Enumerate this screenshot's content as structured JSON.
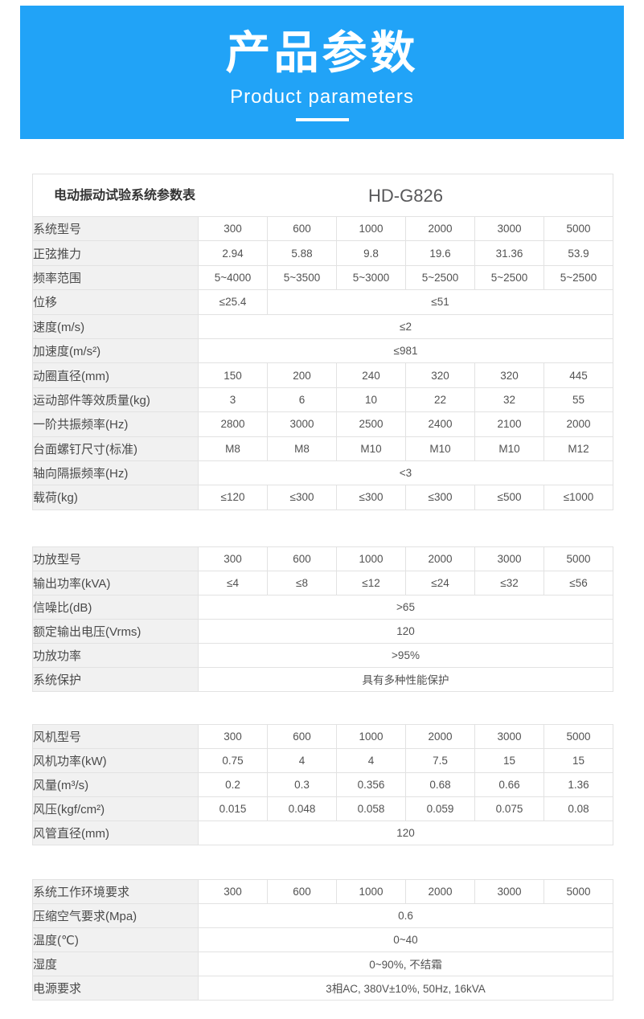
{
  "banner": {
    "title": "产品参数",
    "subtitle": "Product parameters"
  },
  "colors": {
    "banner_blue": "#21a3f7",
    "label_bg": "#f1f1f1",
    "border": "#e2e2e2",
    "title_text": "#333333",
    "model_text": "#58585a"
  },
  "tables": [
    {
      "title": "电动振动试验系统参数表",
      "model": "HD-G826",
      "rows": [
        {
          "label": "系统型号",
          "cells": [
            {
              "text": "300",
              "span": 1
            },
            {
              "text": "600",
              "span": 1
            },
            {
              "text": "1000",
              "span": 1
            },
            {
              "text": "2000",
              "span": 1
            },
            {
              "text": "3000",
              "span": 1
            },
            {
              "text": "5000",
              "span": 1
            }
          ]
        },
        {
          "label": "正弦推力",
          "cells": [
            {
              "text": "2.94",
              "span": 1
            },
            {
              "text": "5.88",
              "span": 1
            },
            {
              "text": "9.8",
              "span": 1
            },
            {
              "text": "19.6",
              "span": 1
            },
            {
              "text": "31.36",
              "span": 1
            },
            {
              "text": "53.9",
              "span": 1
            }
          ]
        },
        {
          "label": "频率范围",
          "cells": [
            {
              "text": "5~4000",
              "span": 1
            },
            {
              "text": "5~3500",
              "span": 1
            },
            {
              "text": "5~3000",
              "span": 1
            },
            {
              "text": "5~2500",
              "span": 1
            },
            {
              "text": "5~2500",
              "span": 1
            },
            {
              "text": "5~2500",
              "span": 1
            }
          ]
        },
        {
          "label": "位移",
          "cells": [
            {
              "text": "≤25.4",
              "span": 1
            },
            {
              "text": "≤51",
              "span": 5
            }
          ]
        },
        {
          "label": "速度(m/s)",
          "cells": [
            {
              "text": "≤2",
              "span": 6
            }
          ]
        },
        {
          "label": "加速度(m/s²)",
          "cells": [
            {
              "text": "≤981",
              "span": 6
            }
          ]
        },
        {
          "label": "动圈直径(mm)",
          "cells": [
            {
              "text": "150",
              "span": 1
            },
            {
              "text": "200",
              "span": 1
            },
            {
              "text": "240",
              "span": 1
            },
            {
              "text": "320",
              "span": 1
            },
            {
              "text": "320",
              "span": 1
            },
            {
              "text": "445",
              "span": 1
            }
          ]
        },
        {
          "label": "运动部件等效质量(kg)",
          "cells": [
            {
              "text": "3",
              "span": 1
            },
            {
              "text": "6",
              "span": 1
            },
            {
              "text": "10",
              "span": 1
            },
            {
              "text": "22",
              "span": 1
            },
            {
              "text": "32",
              "span": 1
            },
            {
              "text": "55",
              "span": 1
            }
          ]
        },
        {
          "label": "一阶共振频率(Hz)",
          "cells": [
            {
              "text": "2800",
              "span": 1
            },
            {
              "text": "3000",
              "span": 1
            },
            {
              "text": "2500",
              "span": 1
            },
            {
              "text": "2400",
              "span": 1
            },
            {
              "text": "2100",
              "span": 1
            },
            {
              "text": "2000",
              "span": 1
            }
          ]
        },
        {
          "label": "台面螺钉尺寸(标准)",
          "cells": [
            {
              "text": "M8",
              "span": 1
            },
            {
              "text": "M8",
              "span": 1
            },
            {
              "text": "M10",
              "span": 1
            },
            {
              "text": "M10",
              "span": 1
            },
            {
              "text": "M10",
              "span": 1
            },
            {
              "text": "M12",
              "span": 1
            }
          ]
        },
        {
          "label": "轴向隔振频率(Hz)",
          "cells": [
            {
              "text": "<3",
              "span": 6
            }
          ]
        },
        {
          "label": "载荷(kg)",
          "cells": [
            {
              "text": "≤120",
              "span": 1
            },
            {
              "text": "≤300",
              "span": 1
            },
            {
              "text": "≤300",
              "span": 1
            },
            {
              "text": "≤300",
              "span": 1
            },
            {
              "text": "≤500",
              "span": 1
            },
            {
              "text": "≤1000",
              "span": 1
            }
          ]
        }
      ]
    },
    {
      "rows": [
        {
          "label": "功放型号",
          "cells": [
            {
              "text": "300",
              "span": 1
            },
            {
              "text": "600",
              "span": 1
            },
            {
              "text": "1000",
              "span": 1
            },
            {
              "text": "2000",
              "span": 1
            },
            {
              "text": "3000",
              "span": 1
            },
            {
              "text": "5000",
              "span": 1
            }
          ]
        },
        {
          "label": "输出功率(kVA)",
          "cells": [
            {
              "text": "≤4",
              "span": 1
            },
            {
              "text": "≤8",
              "span": 1
            },
            {
              "text": "≤12",
              "span": 1
            },
            {
              "text": "≤24",
              "span": 1
            },
            {
              "text": "≤32",
              "span": 1
            },
            {
              "text": "≤56",
              "span": 1
            }
          ]
        },
        {
          "label": "信噪比(dB)",
          "cells": [
            {
              "text": ">65",
              "span": 6
            }
          ]
        },
        {
          "label": "额定输出电压(Vrms)",
          "cells": [
            {
              "text": "120",
              "span": 6
            }
          ]
        },
        {
          "label": "功放功率",
          "cells": [
            {
              "text": ">95%",
              "span": 6
            }
          ]
        },
        {
          "label": "系统保护",
          "cells": [
            {
              "text": "具有多种性能保护",
              "span": 6
            }
          ]
        }
      ]
    },
    {
      "rows": [
        {
          "label": "风机型号",
          "cells": [
            {
              "text": "300",
              "span": 1
            },
            {
              "text": "600",
              "span": 1
            },
            {
              "text": "1000",
              "span": 1
            },
            {
              "text": "2000",
              "span": 1
            },
            {
              "text": "3000",
              "span": 1
            },
            {
              "text": "5000",
              "span": 1
            }
          ]
        },
        {
          "label": "风机功率(kW)",
          "cells": [
            {
              "text": "0.75",
              "span": 1
            },
            {
              "text": "4",
              "span": 1
            },
            {
              "text": "4",
              "span": 1
            },
            {
              "text": "7.5",
              "span": 1
            },
            {
              "text": "15",
              "span": 1
            },
            {
              "text": "15",
              "span": 1
            }
          ]
        },
        {
          "label": "风量(m³/s)",
          "cells": [
            {
              "text": "0.2",
              "span": 1
            },
            {
              "text": "0.3",
              "span": 1
            },
            {
              "text": "0.356",
              "span": 1
            },
            {
              "text": "0.68",
              "span": 1
            },
            {
              "text": "0.66",
              "span": 1
            },
            {
              "text": "1.36",
              "span": 1
            }
          ]
        },
        {
          "label": "风压(kgf/cm²)",
          "cells": [
            {
              "text": "0.015",
              "span": 1
            },
            {
              "text": "0.048",
              "span": 1
            },
            {
              "text": "0.058",
              "span": 1
            },
            {
              "text": "0.059",
              "span": 1
            },
            {
              "text": "0.075",
              "span": 1
            },
            {
              "text": "0.08",
              "span": 1
            }
          ]
        },
        {
          "label": "风管直径(mm)",
          "cells": [
            {
              "text": "120",
              "span": 6
            }
          ]
        }
      ]
    },
    {
      "rows": [
        {
          "label": "系统工作环境要求",
          "cells": [
            {
              "text": "300",
              "span": 1
            },
            {
              "text": "600",
              "span": 1
            },
            {
              "text": "1000",
              "span": 1
            },
            {
              "text": "2000",
              "span": 1
            },
            {
              "text": "3000",
              "span": 1
            },
            {
              "text": "5000",
              "span": 1
            }
          ]
        },
        {
          "label": "压缩空气要求(Mpa)",
          "cells": [
            {
              "text": "0.6",
              "span": 6
            }
          ]
        },
        {
          "label": "温度(℃)",
          "cells": [
            {
              "text": "0~40",
              "span": 6
            }
          ]
        },
        {
          "label": "湿度",
          "cells": [
            {
              "text": "0~90%, 不结霜",
              "span": 6
            }
          ]
        },
        {
          "label": "电源要求",
          "cells": [
            {
              "text": "3相AC, 380V±10%, 50Hz, 16kVA",
              "span": 6
            }
          ]
        }
      ]
    }
  ]
}
